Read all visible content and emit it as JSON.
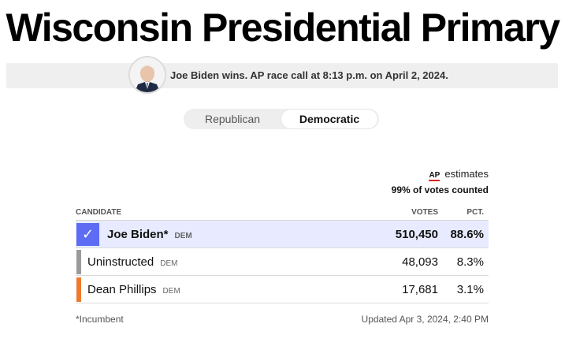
{
  "header": {
    "title": "Wisconsin Presidential Primary"
  },
  "race_call": {
    "text": "Joe Biden wins. AP race call at 8:13 p.m. on April 2, 2024."
  },
  "party_tabs": [
    {
      "label": "Republican",
      "selected": false
    },
    {
      "label": "Democratic",
      "selected": true
    }
  ],
  "estimates": {
    "source": "AP",
    "label": "estimates",
    "counted": "99% of votes counted"
  },
  "table": {
    "headers": {
      "candidate": "CANDIDATE",
      "votes": "VOTES",
      "pct": "PCT."
    },
    "rows": [
      {
        "name": "Joe Biden*",
        "party": "DEM",
        "votes": "510,450",
        "pct": "88.6%",
        "winner": true,
        "color": "#5d6cf3"
      },
      {
        "name": "Uninstructed",
        "party": "DEM",
        "votes": "48,093",
        "pct": "8.3%",
        "winner": false,
        "color": "#9a9a9a"
      },
      {
        "name": "Dean Phillips",
        "party": "DEM",
        "votes": "17,681",
        "pct": "3.1%",
        "winner": false,
        "color": "#ee7a2d"
      }
    ]
  },
  "footer": {
    "footnote": "*Incumbent",
    "updated": "Updated Apr 3, 2024, 2:40 PM"
  }
}
